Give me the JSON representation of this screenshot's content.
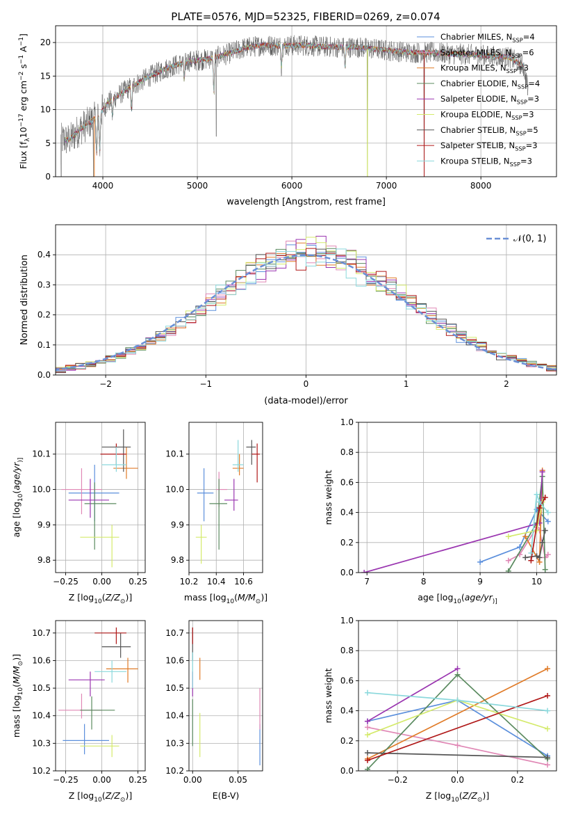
{
  "figure_title": "PLATE=0576, MJD=52325, FIBERID=0269, z=0.074",
  "colors": {
    "C1": "#5b8fdc",
    "C2": "#e087b5",
    "C3": "#e07b28",
    "C4": "#5a8a5f",
    "C5": "#9a35b0",
    "C6": "#d4ea6b",
    "C7": "#555555",
    "C8": "#b01818",
    "C9": "#8ad8dc"
  },
  "spectrum_legend": [
    {
      "label": "Chabrier MILES, N",
      "sub": "SSP",
      "suffix": "=4",
      "color": "#5b8fdc"
    },
    {
      "label": "Salpeter MILES, N",
      "sub": "SSP",
      "suffix": "=6",
      "color": "#e087b5"
    },
    {
      "label": "Kroupa MILES, N",
      "sub": "SSP",
      "suffix": "=3",
      "color": "#e07b28"
    },
    {
      "label": "Chabrier ELODIE, N",
      "sub": "SSP",
      "suffix": "=4",
      "color": "#5a8a5f"
    },
    {
      "label": "Salpeter ELODIE, N",
      "sub": "SSP",
      "suffix": "=3",
      "color": "#9a35b0"
    },
    {
      "label": "Kroupa ELODIE, N",
      "sub": "SSP",
      "suffix": "=3",
      "color": "#d4ea6b"
    },
    {
      "label": "Chabrier STELIB, N",
      "sub": "SSP",
      "suffix": "=5",
      "color": "#555555"
    },
    {
      "label": "Salpeter STELIB, N",
      "sub": "SSP",
      "suffix": "=3",
      "color": "#b01818"
    },
    {
      "label": "Kroupa STELIB, N",
      "sub": "SSP",
      "suffix": "=3",
      "color": "#8ad8dc"
    }
  ],
  "chart_data": [
    {
      "id": "spectrum",
      "type": "line",
      "xlabel": "wavelength [Angstrom, rest frame]",
      "ylabel_parts": [
        "Flux [f",
        "λ",
        "10",
        "−17",
        " erg cm",
        "−2",
        " s",
        "−1",
        " A",
        "−1",
        "]"
      ],
      "xlim": [
        3500,
        8800
      ],
      "ylim": [
        0,
        22.5
      ],
      "xticks": [
        4000,
        5000,
        6000,
        7000,
        8000
      ],
      "yticks": [
        0,
        5,
        10,
        15,
        20
      ],
      "continuum_knots": [
        [
          3550,
          5.5
        ],
        [
          3650,
          5.5
        ],
        [
          3750,
          7
        ],
        [
          3850,
          8
        ],
        [
          3950,
          9
        ],
        [
          4050,
          11
        ],
        [
          4150,
          12
        ],
        [
          4250,
          13
        ],
        [
          4350,
          13.8
        ],
        [
          4500,
          15
        ],
        [
          4700,
          16.3
        ],
        [
          4900,
          17.2
        ],
        [
          5100,
          17.5
        ],
        [
          5300,
          18.2
        ],
        [
          5500,
          19.2
        ],
        [
          5700,
          19.6
        ],
        [
          5900,
          19.5
        ],
        [
          6100,
          19.6
        ],
        [
          6300,
          19.4
        ],
        [
          6500,
          19.3
        ],
        [
          6700,
          19.3
        ],
        [
          6900,
          19
        ],
        [
          7100,
          18.7
        ],
        [
          7300,
          18.5
        ],
        [
          7500,
          18.5
        ],
        [
          7700,
          18.3
        ],
        [
          7900,
          18.2
        ],
        [
          8100,
          18
        ],
        [
          8300,
          17.8
        ],
        [
          8450,
          16.5
        ],
        [
          8500,
          13
        ]
      ],
      "absorption_lines": [
        [
          3934,
          5.5
        ],
        [
          3968,
          5.5
        ],
        [
          4102,
          2.5
        ],
        [
          4304,
          3.5
        ],
        [
          4861,
          2.5
        ],
        [
          5175,
          5
        ],
        [
          5890,
          3
        ],
        [
          6563,
          3
        ]
      ],
      "dips_deep": [
        [
          3560,
          0
        ],
        [
          3900,
          0
        ],
        [
          5200,
          6
        ],
        [
          6800,
          0
        ],
        [
          7400,
          0
        ]
      ],
      "model_xrange": [
        3600,
        8450
      ],
      "noise_amp": 1.6
    },
    {
      "id": "residuals",
      "type": "histogram",
      "xlabel": "(data-model)/error",
      "ylabel": "Normed distribution",
      "xlim": [
        -2.5,
        2.5
      ],
      "ylim": [
        0,
        0.5
      ],
      "xticks": [
        -2,
        -1,
        0,
        1,
        2
      ],
      "xtick_labels": [
        "−2",
        "−1",
        "0",
        "1",
        "2"
      ],
      "yticks": [
        0,
        0.1,
        0.2,
        0.3,
        0.4
      ],
      "ytick_labels": [
        "0.0",
        "0.1",
        "0.2",
        "0.3",
        "0.4"
      ],
      "legend_label": "𝒩(0, 1)",
      "bin_width": 0.1,
      "reference_curve": {
        "name": "𝒩(0, 1)",
        "mu": 0,
        "sigma": 1
      }
    },
    {
      "id": "age_vs_Z",
      "type": "errorbar",
      "xlabel_parts": [
        "Z [log",
        "10",
        "(",
        "Z/Z",
        "⊙",
        ")]"
      ],
      "ylabel_parts": [
        "age  [log",
        "10",
        "(",
        "age/yr",
        ")]"
      ],
      "xlim": [
        -0.32,
        0.3
      ],
      "ylim": [
        9.765,
        10.19
      ],
      "xticks": [
        -0.25,
        0,
        0.25
      ],
      "xtick_labels": [
        "−0.25",
        "0.00",
        "0.25"
      ],
      "yticks": [
        9.8,
        9.9,
        10.0,
        10.1
      ],
      "ytick_labels": [
        "9.8",
        "9.9",
        "10.0",
        "10.1"
      ],
      "points": [
        {
          "c": "#5b8fdc",
          "x": -0.05,
          "xl": -0.23,
          "xh": 0.12,
          "y": 9.99,
          "yl": 9.91,
          "yh": 10.07
        },
        {
          "c": "#e087b5",
          "x": -0.14,
          "xl": -0.28,
          "xh": 0.0,
          "y": 10.0,
          "yl": 9.93,
          "yh": 10.06
        },
        {
          "c": "#e07b28",
          "x": 0.17,
          "xl": 0.08,
          "xh": 0.25,
          "y": 10.06,
          "yl": 10.03,
          "yh": 10.12
        },
        {
          "c": "#5a8a5f",
          "x": -0.05,
          "xl": -0.12,
          "xh": 0.1,
          "y": 9.96,
          "yl": 9.83,
          "yh": 10.02
        },
        {
          "c": "#9a35b0",
          "x": -0.08,
          "xl": -0.23,
          "xh": 0.05,
          "y": 9.97,
          "yl": 9.92,
          "yh": 10.03
        },
        {
          "c": "#d4ea6b",
          "x": 0.07,
          "xl": -0.15,
          "xh": 0.12,
          "y": 9.865,
          "yl": 9.78,
          "yh": 9.9
        },
        {
          "c": "#555555",
          "x": 0.15,
          "xl": 0.0,
          "xh": 0.2,
          "y": 10.12,
          "yl": 10.05,
          "yh": 10.17
        },
        {
          "c": "#b01818",
          "x": 0.1,
          "xl": -0.01,
          "xh": 0.17,
          "y": 10.1,
          "yl": 10.07,
          "yh": 10.13
        },
        {
          "c": "#8ad8dc",
          "x": 0.1,
          "xl": 0.0,
          "xh": 0.17,
          "y": 10.07,
          "yl": 10.05,
          "yh": 10.12
        }
      ]
    },
    {
      "id": "age_vs_mass",
      "type": "errorbar",
      "xlabel_parts": [
        "mass [log",
        "10",
        "(",
        "M/M",
        "⊙",
        ")]"
      ],
      "ylabel_parts": [],
      "xlim": [
        10.2,
        10.74
      ],
      "ylim": [
        9.765,
        10.19
      ],
      "xticks": [
        10.2,
        10.4,
        10.6
      ],
      "xtick_labels": [
        "10.2",
        "10.4",
        "10.6"
      ],
      "yticks": [
        9.8,
        9.9,
        10.0,
        10.1
      ],
      "ytick_labels": [
        "9.8",
        "9.9",
        "10.0",
        "10.1"
      ],
      "points": [
        {
          "c": "#5b8fdc",
          "x": 10.31,
          "xl": 10.26,
          "xh": 10.38,
          "y": 9.99,
          "yl": 9.91,
          "yh": 10.06
        },
        {
          "c": "#e087b5",
          "x": 10.42,
          "xl": 10.4,
          "xh": 10.48,
          "y": 10.0,
          "yl": 9.95,
          "yh": 10.05
        },
        {
          "c": "#e07b28",
          "x": 10.57,
          "xl": 10.52,
          "xh": 10.6,
          "y": 10.06,
          "yl": 10.04,
          "yh": 10.1
        },
        {
          "c": "#5a8a5f",
          "x": 10.42,
          "xl": 10.35,
          "xh": 10.48,
          "y": 9.96,
          "yl": 9.83,
          "yh": 10.03
        },
        {
          "c": "#9a35b0",
          "x": 10.53,
          "xl": 10.46,
          "xh": 10.56,
          "y": 9.97,
          "yl": 9.94,
          "yh": 10.03
        },
        {
          "c": "#d4ea6b",
          "x": 10.29,
          "xl": 10.25,
          "xh": 10.33,
          "y": 9.865,
          "yl": 9.79,
          "yh": 9.9
        },
        {
          "c": "#555555",
          "x": 10.66,
          "xl": 10.62,
          "xh": 10.69,
          "y": 10.12,
          "yl": 10.07,
          "yh": 10.14
        },
        {
          "c": "#b01818",
          "x": 10.7,
          "xl": 10.66,
          "xh": 10.72,
          "y": 10.1,
          "yl": 10.02,
          "yh": 10.13
        },
        {
          "c": "#8ad8dc",
          "x": 10.56,
          "xl": 10.52,
          "xh": 10.6,
          "y": 10.07,
          "yl": 10.05,
          "yh": 10.14
        }
      ]
    },
    {
      "id": "weight_vs_age",
      "type": "line",
      "xlabel_parts": [
        "age  [log",
        "10",
        "(",
        "age/yr",
        ")]"
      ],
      "ylabel": "mass weight",
      "xlim": [
        6.85,
        10.35
      ],
      "ylim": [
        0,
        1.0
      ],
      "xticks": [
        7,
        8,
        9,
        10
      ],
      "xtick_labels": [
        "7",
        "8",
        "9",
        "10"
      ],
      "yticks": [
        0,
        0.2,
        0.4,
        0.6,
        0.8,
        1.0
      ],
      "ytick_labels": [
        "0.0",
        "0.2",
        "0.4",
        "0.6",
        "0.8",
        "1.0"
      ],
      "series": [
        {
          "c": "#5b8fdc",
          "x": [
            9.0,
            9.7,
            10.0,
            10.2
          ],
          "y": [
            0.07,
            0.17,
            0.42,
            0.34
          ]
        },
        {
          "c": "#e087b5",
          "x": [
            9.5,
            9.7,
            10.0,
            10.05,
            10.15,
            10.2
          ],
          "y": [
            0.08,
            0.12,
            0.3,
            0.28,
            0.1,
            0.12
          ]
        },
        {
          "c": "#e07b28",
          "x": [
            9.8,
            10.05,
            10.1
          ],
          "y": [
            0.24,
            0.07,
            0.68
          ]
        },
        {
          "c": "#5a8a5f",
          "x": [
            9.5,
            10.0,
            10.1,
            10.15
          ],
          "y": [
            0.01,
            0.33,
            0.64,
            0.02
          ]
        },
        {
          "c": "#9a35b0",
          "x": [
            6.95,
            10.05,
            10.1
          ],
          "y": [
            0.0,
            0.33,
            0.67
          ]
        },
        {
          "c": "#d4ea6b",
          "x": [
            9.5,
            10.0,
            10.1
          ],
          "y": [
            0.24,
            0.28,
            0.47
          ]
        },
        {
          "c": "#555555",
          "x": [
            9.8,
            10.0,
            10.05,
            10.1,
            10.15
          ],
          "y": [
            0.1,
            0.11,
            0.1,
            0.2,
            0.28
          ]
        },
        {
          "c": "#b01818",
          "x": [
            9.9,
            10.05,
            10.15
          ],
          "y": [
            0.08,
            0.43,
            0.5
          ]
        },
        {
          "c": "#8ad8dc",
          "x": [
            9.9,
            10.0,
            10.05,
            10.2
          ],
          "y": [
            0.13,
            0.52,
            0.47,
            0.4
          ]
        }
      ]
    },
    {
      "id": "mass_vs_Z",
      "type": "errorbar",
      "xlabel_parts": [
        "Z [log",
        "10",
        "(",
        "Z/Z",
        "⊙",
        ")]"
      ],
      "ylabel_parts": [
        "mass [log",
        "10",
        "(",
        "M/M",
        "⊙",
        ")]"
      ],
      "xlim": [
        -0.32,
        0.3
      ],
      "ylim": [
        10.2,
        10.745
      ],
      "xticks": [
        -0.25,
        0,
        0.25
      ],
      "xtick_labels": [
        "−0.25",
        "0.00",
        "0.25"
      ],
      "yticks": [
        10.2,
        10.3,
        10.4,
        10.5,
        10.6,
        10.7
      ],
      "ytick_labels": [
        "10.2",
        "10.3",
        "10.4",
        "10.5",
        "10.6",
        "10.7"
      ],
      "points": [
        {
          "c": "#5b8fdc",
          "x": -0.12,
          "xl": -0.27,
          "xh": 0.05,
          "y": 10.31,
          "yl": 10.26,
          "yh": 10.37
        },
        {
          "c": "#e087b5",
          "x": -0.14,
          "xl": -0.3,
          "xh": 0.0,
          "y": 10.42,
          "yl": 10.39,
          "yh": 10.48
        },
        {
          "c": "#e07b28",
          "x": 0.18,
          "xl": 0.03,
          "xh": 0.25,
          "y": 10.57,
          "yl": 10.52,
          "yh": 10.61
        },
        {
          "c": "#5a8a5f",
          "x": -0.07,
          "xl": -0.15,
          "xh": 0.09,
          "y": 10.42,
          "yl": 10.35,
          "yh": 10.47
        },
        {
          "c": "#9a35b0",
          "x": -0.08,
          "xl": -0.23,
          "xh": 0.02,
          "y": 10.53,
          "yl": 10.47,
          "yh": 10.56
        },
        {
          "c": "#d4ea6b",
          "x": 0.07,
          "xl": -0.15,
          "xh": 0.12,
          "y": 10.29,
          "yl": 10.25,
          "yh": 10.33
        },
        {
          "c": "#555555",
          "x": 0.13,
          "xl": 0.0,
          "xh": 0.2,
          "y": 10.65,
          "yl": 10.61,
          "yh": 10.7
        },
        {
          "c": "#b01818",
          "x": 0.1,
          "xl": -0.05,
          "xh": 0.17,
          "y": 10.7,
          "yl": 10.66,
          "yh": 10.72
        },
        {
          "c": "#8ad8dc",
          "x": 0.07,
          "xl": -0.05,
          "xh": 0.17,
          "y": 10.56,
          "yl": 10.52,
          "yh": 10.6
        }
      ]
    },
    {
      "id": "mass_vs_ebv",
      "type": "errorbar",
      "xlabel": "E(B-V)",
      "xlim": [
        -0.004,
        0.077
      ],
      "ylim": [
        10.2,
        10.745
      ],
      "xticks": [
        0,
        0.05
      ],
      "xtick_labels": [
        "0.00",
        "0.05"
      ],
      "yticks": [
        10.2,
        10.3,
        10.4,
        10.5,
        10.6,
        10.7
      ],
      "ytick_labels": [
        "10.2",
        "10.3",
        "10.4",
        "10.5",
        "10.6",
        "10.7"
      ],
      "points": [
        {
          "c": "#5b8fdc",
          "x": 0.074,
          "xl": 0.074,
          "xh": 0.074,
          "y": 10.31,
          "yl": 10.22,
          "yh": 10.37
        },
        {
          "c": "#e087b5",
          "x": 0.074,
          "xl": 0.074,
          "xh": 0.074,
          "y": 10.42,
          "yl": 10.35,
          "yh": 10.5
        },
        {
          "c": "#e07b28",
          "x": 0.008,
          "xl": 0.008,
          "xh": 0.008,
          "y": 10.57,
          "yl": 10.53,
          "yh": 10.61
        },
        {
          "c": "#5a8a5f",
          "x": 0.0,
          "xl": 0.0,
          "xh": 0.0,
          "y": 10.42,
          "yl": 10.29,
          "yh": 10.46
        },
        {
          "c": "#9a35b0",
          "x": 0.0,
          "xl": 0.0,
          "xh": 0.0,
          "y": 10.53,
          "yl": 10.47,
          "yh": 10.56
        },
        {
          "c": "#d4ea6b",
          "x": 0.008,
          "xl": 0.008,
          "xh": 0.008,
          "y": 10.29,
          "yl": 10.25,
          "yh": 10.41
        },
        {
          "c": "#555555",
          "x": 0.0,
          "xl": 0.0,
          "xh": 0.0,
          "y": 10.65,
          "yl": 10.6,
          "yh": 10.72
        },
        {
          "c": "#b01818",
          "x": 0.0,
          "xl": 0.0,
          "xh": 0.0,
          "y": 10.7,
          "yl": 10.66,
          "yh": 10.72
        },
        {
          "c": "#8ad8dc",
          "x": 0.0,
          "xl": 0.0,
          "xh": 0.0,
          "y": 10.56,
          "yl": 10.5,
          "yh": 10.63
        }
      ]
    },
    {
      "id": "weight_vs_Z",
      "type": "line",
      "xlabel_parts": [
        "Z [log",
        "10",
        "(",
        "Z/Z",
        "⊙",
        ")]"
      ],
      "ylabel": "mass weight",
      "xlim": [
        -0.33,
        0.33
      ],
      "ylim": [
        0,
        1.0
      ],
      "xticks": [
        -0.2,
        0,
        0.2
      ],
      "xtick_labels": [
        "−0.2",
        "0.0",
        "0.2"
      ],
      "yticks": [
        0,
        0.2,
        0.4,
        0.6,
        0.8,
        1.0
      ],
      "ytick_labels": [
        "0.0",
        "0.2",
        "0.4",
        "0.6",
        "0.8",
        "1.0"
      ],
      "series": [
        {
          "c": "#5b8fdc",
          "x": [
            -0.3,
            0.0,
            0.3
          ],
          "y": [
            0.33,
            0.47,
            0.1
          ]
        },
        {
          "c": "#e087b5",
          "x": [
            -0.3,
            0.0,
            0.3
          ],
          "y": [
            0.29,
            0.17,
            0.04
          ]
        },
        {
          "c": "#e07b28",
          "x": [
            -0.3,
            0.3
          ],
          "y": [
            0.08,
            0.68
          ]
        },
        {
          "c": "#5a8a5f",
          "x": [
            -0.3,
            0.0,
            0.3
          ],
          "y": [
            0.01,
            0.64,
            0.08
          ]
        },
        {
          "c": "#9a35b0",
          "x": [
            -0.3,
            0.0
          ],
          "y": [
            0.33,
            0.68
          ]
        },
        {
          "c": "#d4ea6b",
          "x": [
            -0.3,
            0.0,
            0.3
          ],
          "y": [
            0.24,
            0.47,
            0.28
          ]
        },
        {
          "c": "#555555",
          "x": [
            -0.3,
            0.3
          ],
          "y": [
            0.12,
            0.09
          ]
        },
        {
          "c": "#b01818",
          "x": [
            -0.3,
            0.3
          ],
          "y": [
            0.07,
            0.5
          ]
        },
        {
          "c": "#8ad8dc",
          "x": [
            -0.3,
            0.0,
            0.3
          ],
          "y": [
            0.52,
            0.47,
            0.4
          ]
        }
      ]
    }
  ]
}
